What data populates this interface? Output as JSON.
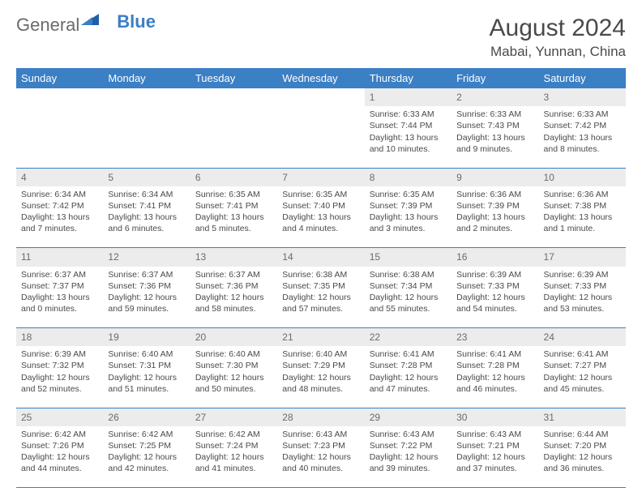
{
  "logo": {
    "text1": "General",
    "text2": "Blue"
  },
  "title": "August 2024",
  "location": "Mabai, Yunnan, China",
  "colors": {
    "header_bg": "#3b7fc4",
    "header_text": "#ffffff",
    "daynum_bg": "#ececec",
    "border": "#3b7fc4",
    "body_text": "#4a4a4a",
    "logo_gray": "#6b6b6b",
    "logo_blue": "#3b7fc4"
  },
  "day_headers": [
    "Sunday",
    "Monday",
    "Tuesday",
    "Wednesday",
    "Thursday",
    "Friday",
    "Saturday"
  ],
  "weeks": [
    {
      "nums": [
        "",
        "",
        "",
        "",
        "1",
        "2",
        "3"
      ],
      "cells": [
        null,
        null,
        null,
        null,
        {
          "sr": "Sunrise: 6:33 AM",
          "ss": "Sunset: 7:44 PM",
          "dl1": "Daylight: 13 hours",
          "dl2": "and 10 minutes."
        },
        {
          "sr": "Sunrise: 6:33 AM",
          "ss": "Sunset: 7:43 PM",
          "dl1": "Daylight: 13 hours",
          "dl2": "and 9 minutes."
        },
        {
          "sr": "Sunrise: 6:33 AM",
          "ss": "Sunset: 7:42 PM",
          "dl1": "Daylight: 13 hours",
          "dl2": "and 8 minutes."
        }
      ]
    },
    {
      "nums": [
        "4",
        "5",
        "6",
        "7",
        "8",
        "9",
        "10"
      ],
      "cells": [
        {
          "sr": "Sunrise: 6:34 AM",
          "ss": "Sunset: 7:42 PM",
          "dl1": "Daylight: 13 hours",
          "dl2": "and 7 minutes."
        },
        {
          "sr": "Sunrise: 6:34 AM",
          "ss": "Sunset: 7:41 PM",
          "dl1": "Daylight: 13 hours",
          "dl2": "and 6 minutes."
        },
        {
          "sr": "Sunrise: 6:35 AM",
          "ss": "Sunset: 7:41 PM",
          "dl1": "Daylight: 13 hours",
          "dl2": "and 5 minutes."
        },
        {
          "sr": "Sunrise: 6:35 AM",
          "ss": "Sunset: 7:40 PM",
          "dl1": "Daylight: 13 hours",
          "dl2": "and 4 minutes."
        },
        {
          "sr": "Sunrise: 6:35 AM",
          "ss": "Sunset: 7:39 PM",
          "dl1": "Daylight: 13 hours",
          "dl2": "and 3 minutes."
        },
        {
          "sr": "Sunrise: 6:36 AM",
          "ss": "Sunset: 7:39 PM",
          "dl1": "Daylight: 13 hours",
          "dl2": "and 2 minutes."
        },
        {
          "sr": "Sunrise: 6:36 AM",
          "ss": "Sunset: 7:38 PM",
          "dl1": "Daylight: 13 hours",
          "dl2": "and 1 minute."
        }
      ]
    },
    {
      "nums": [
        "11",
        "12",
        "13",
        "14",
        "15",
        "16",
        "17"
      ],
      "cells": [
        {
          "sr": "Sunrise: 6:37 AM",
          "ss": "Sunset: 7:37 PM",
          "dl1": "Daylight: 13 hours",
          "dl2": "and 0 minutes."
        },
        {
          "sr": "Sunrise: 6:37 AM",
          "ss": "Sunset: 7:36 PM",
          "dl1": "Daylight: 12 hours",
          "dl2": "and 59 minutes."
        },
        {
          "sr": "Sunrise: 6:37 AM",
          "ss": "Sunset: 7:36 PM",
          "dl1": "Daylight: 12 hours",
          "dl2": "and 58 minutes."
        },
        {
          "sr": "Sunrise: 6:38 AM",
          "ss": "Sunset: 7:35 PM",
          "dl1": "Daylight: 12 hours",
          "dl2": "and 57 minutes."
        },
        {
          "sr": "Sunrise: 6:38 AM",
          "ss": "Sunset: 7:34 PM",
          "dl1": "Daylight: 12 hours",
          "dl2": "and 55 minutes."
        },
        {
          "sr": "Sunrise: 6:39 AM",
          "ss": "Sunset: 7:33 PM",
          "dl1": "Daylight: 12 hours",
          "dl2": "and 54 minutes."
        },
        {
          "sr": "Sunrise: 6:39 AM",
          "ss": "Sunset: 7:33 PM",
          "dl1": "Daylight: 12 hours",
          "dl2": "and 53 minutes."
        }
      ]
    },
    {
      "nums": [
        "18",
        "19",
        "20",
        "21",
        "22",
        "23",
        "24"
      ],
      "cells": [
        {
          "sr": "Sunrise: 6:39 AM",
          "ss": "Sunset: 7:32 PM",
          "dl1": "Daylight: 12 hours",
          "dl2": "and 52 minutes."
        },
        {
          "sr": "Sunrise: 6:40 AM",
          "ss": "Sunset: 7:31 PM",
          "dl1": "Daylight: 12 hours",
          "dl2": "and 51 minutes."
        },
        {
          "sr": "Sunrise: 6:40 AM",
          "ss": "Sunset: 7:30 PM",
          "dl1": "Daylight: 12 hours",
          "dl2": "and 50 minutes."
        },
        {
          "sr": "Sunrise: 6:40 AM",
          "ss": "Sunset: 7:29 PM",
          "dl1": "Daylight: 12 hours",
          "dl2": "and 48 minutes."
        },
        {
          "sr": "Sunrise: 6:41 AM",
          "ss": "Sunset: 7:28 PM",
          "dl1": "Daylight: 12 hours",
          "dl2": "and 47 minutes."
        },
        {
          "sr": "Sunrise: 6:41 AM",
          "ss": "Sunset: 7:28 PM",
          "dl1": "Daylight: 12 hours",
          "dl2": "and 46 minutes."
        },
        {
          "sr": "Sunrise: 6:41 AM",
          "ss": "Sunset: 7:27 PM",
          "dl1": "Daylight: 12 hours",
          "dl2": "and 45 minutes."
        }
      ]
    },
    {
      "nums": [
        "25",
        "26",
        "27",
        "28",
        "29",
        "30",
        "31"
      ],
      "cells": [
        {
          "sr": "Sunrise: 6:42 AM",
          "ss": "Sunset: 7:26 PM",
          "dl1": "Daylight: 12 hours",
          "dl2": "and 44 minutes."
        },
        {
          "sr": "Sunrise: 6:42 AM",
          "ss": "Sunset: 7:25 PM",
          "dl1": "Daylight: 12 hours",
          "dl2": "and 42 minutes."
        },
        {
          "sr": "Sunrise: 6:42 AM",
          "ss": "Sunset: 7:24 PM",
          "dl1": "Daylight: 12 hours",
          "dl2": "and 41 minutes."
        },
        {
          "sr": "Sunrise: 6:43 AM",
          "ss": "Sunset: 7:23 PM",
          "dl1": "Daylight: 12 hours",
          "dl2": "and 40 minutes."
        },
        {
          "sr": "Sunrise: 6:43 AM",
          "ss": "Sunset: 7:22 PM",
          "dl1": "Daylight: 12 hours",
          "dl2": "and 39 minutes."
        },
        {
          "sr": "Sunrise: 6:43 AM",
          "ss": "Sunset: 7:21 PM",
          "dl1": "Daylight: 12 hours",
          "dl2": "and 37 minutes."
        },
        {
          "sr": "Sunrise: 6:44 AM",
          "ss": "Sunset: 7:20 PM",
          "dl1": "Daylight: 12 hours",
          "dl2": "and 36 minutes."
        }
      ]
    }
  ]
}
